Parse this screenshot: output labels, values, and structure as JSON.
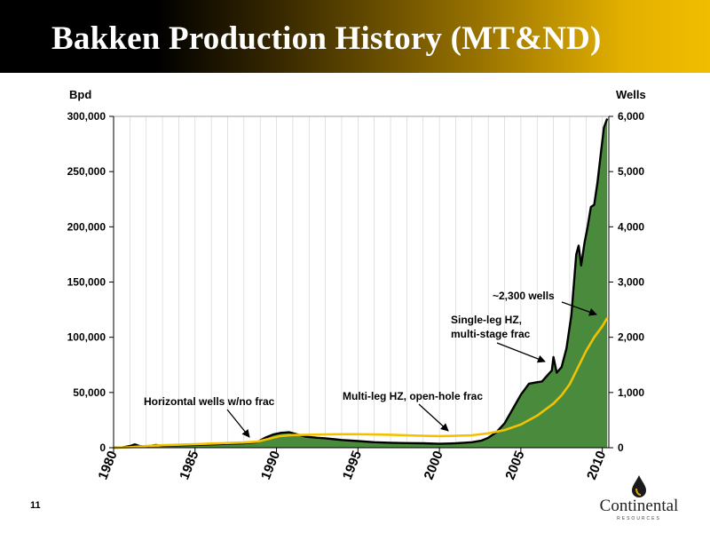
{
  "slide": {
    "title": "Bakken Production History (MT&ND)",
    "page_number": "11",
    "logo": {
      "name": "Continental",
      "subtitle": "RESOURCES",
      "icon": "oil-drop-icon"
    },
    "colors": {
      "production_fill": "#4a8a3c",
      "production_line": "#000000",
      "wells_line": "#f2c200",
      "header_gold": "#f1bd00"
    }
  },
  "chart_data": {
    "type": "area",
    "grid": "vertical",
    "legend": "none",
    "y_left": {
      "label": "Bpd",
      "range": [
        0,
        300000
      ],
      "ticks": [
        "0",
        "50,000",
        "100,000",
        "150,000",
        "200,000",
        "250,000",
        "300,000"
      ]
    },
    "y_right": {
      "label": "Wells",
      "range": [
        0,
        6000
      ],
      "ticks": [
        "0",
        "1,000",
        "2,000",
        "3,000",
        "4,000",
        "5,000",
        "6,000"
      ]
    },
    "x": {
      "range": [
        1980,
        2010.4
      ],
      "ticks": [
        "1980",
        "1985",
        "1990",
        "1995",
        "2000",
        "2005",
        "2010"
      ]
    },
    "series": [
      {
        "axis": "left",
        "style": "area",
        "points": [
          [
            1980,
            0
          ],
          [
            1980.5,
            200
          ],
          [
            1981,
            1500
          ],
          [
            1981.3,
            3000
          ],
          [
            1981.6,
            1500
          ],
          [
            1982,
            1200
          ],
          [
            1982.6,
            2500
          ],
          [
            1983,
            1800
          ],
          [
            1983.5,
            2000
          ],
          [
            1984,
            2200
          ],
          [
            1985,
            2500
          ],
          [
            1986,
            3000
          ],
          [
            1987,
            3500
          ],
          [
            1988,
            4000
          ],
          [
            1988.8,
            5000
          ],
          [
            1989.3,
            9000
          ],
          [
            1989.8,
            12000
          ],
          [
            1990.3,
            13500
          ],
          [
            1990.8,
            14000
          ],
          [
            1991.3,
            12000
          ],
          [
            1991.8,
            10000
          ],
          [
            1992.5,
            9000
          ],
          [
            1993,
            8500
          ],
          [
            1994,
            7000
          ],
          [
            1995,
            6000
          ],
          [
            1996,
            5000
          ],
          [
            1997,
            4500
          ],
          [
            1998,
            4200
          ],
          [
            1999,
            4000
          ],
          [
            2000,
            3500
          ],
          [
            2001,
            4000
          ],
          [
            2001.5,
            4500
          ],
          [
            2002,
            5000
          ],
          [
            2002.6,
            6500
          ],
          [
            2003,
            9000
          ],
          [
            2003.5,
            14000
          ],
          [
            2004,
            22000
          ],
          [
            2004.5,
            35000
          ],
          [
            2005,
            48000
          ],
          [
            2005.5,
            58000
          ],
          [
            2005.9,
            59000
          ],
          [
            2006.3,
            60000
          ],
          [
            2006.6,
            65000
          ],
          [
            2006.9,
            70000
          ],
          [
            2007,
            82000
          ],
          [
            2007.2,
            68000
          ],
          [
            2007.5,
            73000
          ],
          [
            2007.8,
            90000
          ],
          [
            2008.1,
            120000
          ],
          [
            2008.4,
            175000
          ],
          [
            2008.55,
            183000
          ],
          [
            2008.7,
            165000
          ],
          [
            2008.9,
            185000
          ],
          [
            2009.1,
            200000
          ],
          [
            2009.3,
            218000
          ],
          [
            2009.5,
            220000
          ],
          [
            2009.7,
            240000
          ],
          [
            2009.9,
            265000
          ],
          [
            2010.1,
            290000
          ],
          [
            2010.3,
            298000
          ]
        ]
      },
      {
        "axis": "right",
        "style": "line",
        "points": [
          [
            1980,
            0
          ],
          [
            1981,
            10
          ],
          [
            1982,
            30
          ],
          [
            1983,
            45
          ],
          [
            1984,
            55
          ],
          [
            1985,
            65
          ],
          [
            1986,
            75
          ],
          [
            1987,
            85
          ],
          [
            1988,
            95
          ],
          [
            1988.8,
            110
          ],
          [
            1989.5,
            160
          ],
          [
            1990.2,
            210
          ],
          [
            1991,
            230
          ],
          [
            1992,
            235
          ],
          [
            1993,
            240
          ],
          [
            1994,
            245
          ],
          [
            1995,
            245
          ],
          [
            1996,
            240
          ],
          [
            1997,
            235
          ],
          [
            1998,
            225
          ],
          [
            1999,
            215
          ],
          [
            2000,
            210
          ],
          [
            2001,
            215
          ],
          [
            2002,
            225
          ],
          [
            2003,
            260
          ],
          [
            2004,
            320
          ],
          [
            2005,
            420
          ],
          [
            2006,
            580
          ],
          [
            2007,
            800
          ],
          [
            2007.5,
            950
          ],
          [
            2008,
            1150
          ],
          [
            2008.5,
            1450
          ],
          [
            2009,
            1750
          ],
          [
            2009.5,
            2000
          ],
          [
            2010,
            2200
          ],
          [
            2010.3,
            2350
          ]
        ]
      }
    ],
    "annotations": [
      "Horizontal wells w/no frac",
      "Multi-leg HZ, open-hole frac",
      "Single-leg HZ,",
      "multi-stage frac",
      "~2,300 wells"
    ]
  }
}
